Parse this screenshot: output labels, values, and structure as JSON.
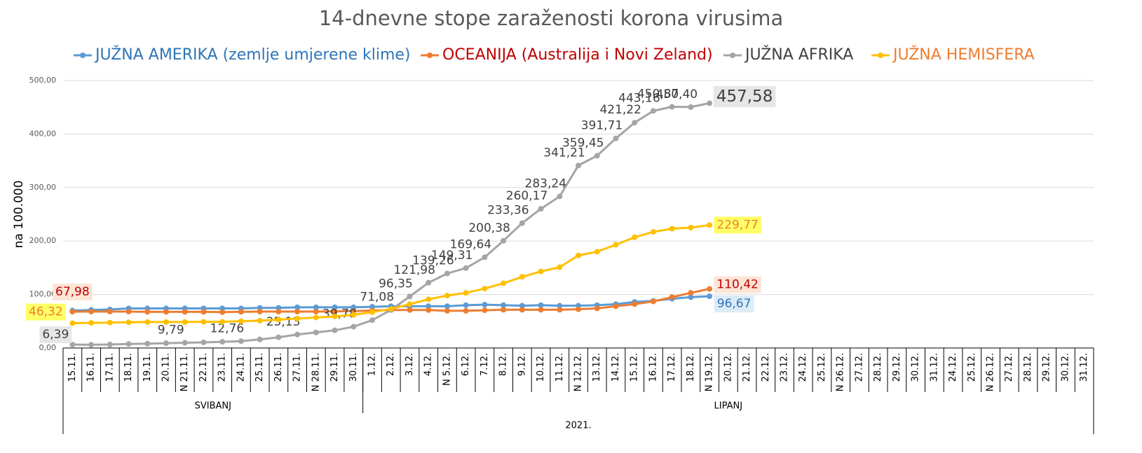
{
  "chart_data": {
    "type": "line",
    "title": "14-dnevne stope zaraženosti korona virusima",
    "y_label": "na 100.000",
    "categories": [
      "15.11.",
      "16.11.",
      "17.11.",
      "18.11.",
      "19.11.",
      "20.11.",
      "N 21.11.",
      "22.11.",
      "23.11.",
      "24.11.",
      "25.11.",
      "26.11.",
      "27.11.",
      "N 28.11.",
      "29.11.",
      "30.11.",
      "1.12.",
      "2.12.",
      "3.12.",
      "4.12.",
      "N 5.12.",
      "6.12.",
      "7.12.",
      "8.12.",
      "9.12.",
      "10.12.",
      "11.12.",
      "N 12.12.",
      "13.12.",
      "14.12.",
      "15.12.",
      "16.12.",
      "17.12.",
      "18.12.",
      "N 19.12.",
      "20.12.",
      "21.12.",
      "22.12.",
      "23.12.",
      "24.12.",
      "25.12.",
      "N 26.12.",
      "27.12.",
      "28.12.",
      "29.12.",
      "30.12.",
      "31.12.",
      "24.12.",
      "25.12.",
      "N 26.12.",
      "27.12.",
      "28.12.",
      "29.12.",
      "30.12.",
      "31.12."
    ],
    "groups": [
      {
        "label": "SVIBANJ",
        "start": 0,
        "end": 15
      },
      {
        "label": "LIPANJ",
        "start": 16,
        "end": 54
      }
    ],
    "year": "2021.",
    "ylim": [
      0,
      500
    ],
    "yticks": [
      {
        "value": 0,
        "label": "0,00"
      },
      {
        "value": 100,
        "label": "100,00"
      },
      {
        "value": 200,
        "label": "200,00"
      },
      {
        "value": 300,
        "label": "300,00"
      },
      {
        "value": 400,
        "label": "400,00"
      },
      {
        "value": 500,
        "label": "500,00"
      }
    ],
    "grid": true,
    "legend": "top",
    "series": [
      {
        "name": "JUŽNA AMERIKA (zemlje umjerene klime)",
        "color": "#5b9bd5",
        "text_color": "#2e75b6",
        "label_background": "#ddebf7",
        "values": [
          70,
          71,
          72,
          74,
          74,
          74,
          74,
          74,
          74,
          74,
          75,
          75,
          76,
          76,
          76,
          76,
          77,
          78,
          78,
          78,
          78,
          80,
          81,
          80,
          79,
          80,
          79,
          79,
          80,
          82,
          86,
          88,
          92,
          95,
          96.67,
          null,
          null,
          null,
          null,
          null,
          null,
          null,
          null,
          null,
          null,
          null,
          null,
          null,
          null,
          null,
          null,
          null,
          null,
          null,
          null
        ],
        "value_labels": [
          null,
          null,
          null,
          null,
          null,
          null,
          null,
          null,
          null,
          null,
          null,
          null,
          null,
          null,
          null,
          null,
          null,
          null,
          null,
          null,
          null,
          null,
          null,
          null,
          null,
          null,
          null,
          null,
          null,
          null,
          null,
          null,
          null,
          null,
          "96,67",
          null,
          null,
          null,
          null,
          null,
          null,
          null,
          null,
          null,
          null,
          null,
          null,
          null,
          null,
          null,
          null,
          null,
          null,
          null,
          null
        ]
      },
      {
        "name": "OCEANIJA (Australija i Novi Zeland)",
        "color": "#ed7d31",
        "text_color": "#c00000",
        "label_background": "#fce4d6",
        "values": [
          67.98,
          68,
          68,
          68,
          67.5,
          67.5,
          67.5,
          67.5,
          67,
          67.5,
          68,
          68,
          68,
          68,
          68.5,
          69,
          70,
          71,
          71,
          71,
          69.5,
          69.5,
          70.5,
          71.5,
          71.5,
          71.5,
          71.5,
          72.5,
          74,
          78,
          82,
          87,
          95,
          103,
          110.42,
          null,
          null,
          null,
          null,
          null,
          null,
          null,
          null,
          null,
          null,
          null,
          null,
          null,
          null,
          null,
          null,
          null,
          null,
          null,
          null
        ],
        "value_labels": [
          "67,98",
          null,
          null,
          null,
          null,
          null,
          null,
          null,
          null,
          null,
          null,
          null,
          null,
          null,
          null,
          null,
          null,
          null,
          null,
          null,
          null,
          null,
          null,
          null,
          null,
          null,
          null,
          null,
          null,
          null,
          null,
          null,
          null,
          null,
          "110,42",
          null,
          null,
          null,
          null,
          null,
          null,
          null,
          null,
          null,
          null,
          null,
          null,
          null,
          null,
          null,
          null,
          null,
          null,
          null,
          null
        ]
      },
      {
        "name": "JUŽNA AFRIKA",
        "color": "#a5a5a5",
        "text_color": "#404040",
        "label_background": "#e7e6e6",
        "values": [
          6.39,
          6,
          6.5,
          7.5,
          8,
          9,
          9.79,
          10.5,
          11.5,
          12.76,
          16,
          20,
          25.13,
          29,
          33,
          39.78,
          52,
          71.08,
          96.35,
          121.98,
          139.26,
          149.31,
          169.64,
          200.38,
          233.36,
          260.17,
          283.24,
          341.21,
          359.45,
          391.71,
          421.22,
          443.16,
          450.87,
          450.4,
          457.58,
          null,
          null,
          null,
          null,
          null,
          null,
          null,
          null,
          null,
          null,
          null,
          null,
          null,
          null,
          null,
          null,
          null,
          null,
          null,
          null
        ],
        "value_labels": [
          "6,39",
          null,
          null,
          null,
          null,
          null,
          "9,79",
          null,
          null,
          "12,76",
          null,
          null,
          "25,13",
          null,
          null,
          "39,78",
          null,
          "71,08",
          "96,35",
          "121,98",
          "139,26",
          "149,31",
          "169,64",
          "200,38",
          "233,36",
          "260,17",
          "283,24",
          "341,21",
          "359,45",
          "391,71",
          "421,22",
          "443,16",
          "450,87",
          "450,40",
          "457,58",
          null,
          null,
          null,
          null,
          null,
          null,
          null,
          null,
          null,
          null,
          null,
          null,
          null,
          null,
          null,
          null,
          null,
          null,
          null,
          null
        ]
      },
      {
        "name": "JUŽNA HEMISFERA",
        "color": "#ffc000",
        "text_color": "#ed7d31",
        "label_background": "#ffff66",
        "values": [
          46.32,
          47,
          47.5,
          48,
          48.5,
          48.5,
          48.5,
          49,
          49,
          50,
          51,
          53,
          55,
          57,
          59,
          62,
          67,
          73,
          82,
          91,
          98,
          103,
          111,
          121,
          133,
          143,
          151,
          173,
          180,
          193,
          207,
          217,
          223,
          225,
          229.77,
          null,
          null,
          null,
          null,
          null,
          null,
          null,
          null,
          null,
          null,
          null,
          null,
          null,
          null,
          null,
          null,
          null,
          null,
          null,
          null
        ],
        "value_labels": [
          "46,32",
          null,
          null,
          null,
          null,
          null,
          null,
          null,
          null,
          null,
          null,
          null,
          null,
          null,
          null,
          null,
          null,
          null,
          null,
          null,
          null,
          null,
          null,
          null,
          null,
          null,
          null,
          null,
          null,
          null,
          null,
          null,
          null,
          null,
          "229,77",
          null,
          null,
          null,
          null,
          null,
          null,
          null,
          null,
          null,
          null,
          null,
          null,
          null,
          null,
          null,
          null,
          null,
          null,
          null,
          null
        ]
      }
    ]
  }
}
